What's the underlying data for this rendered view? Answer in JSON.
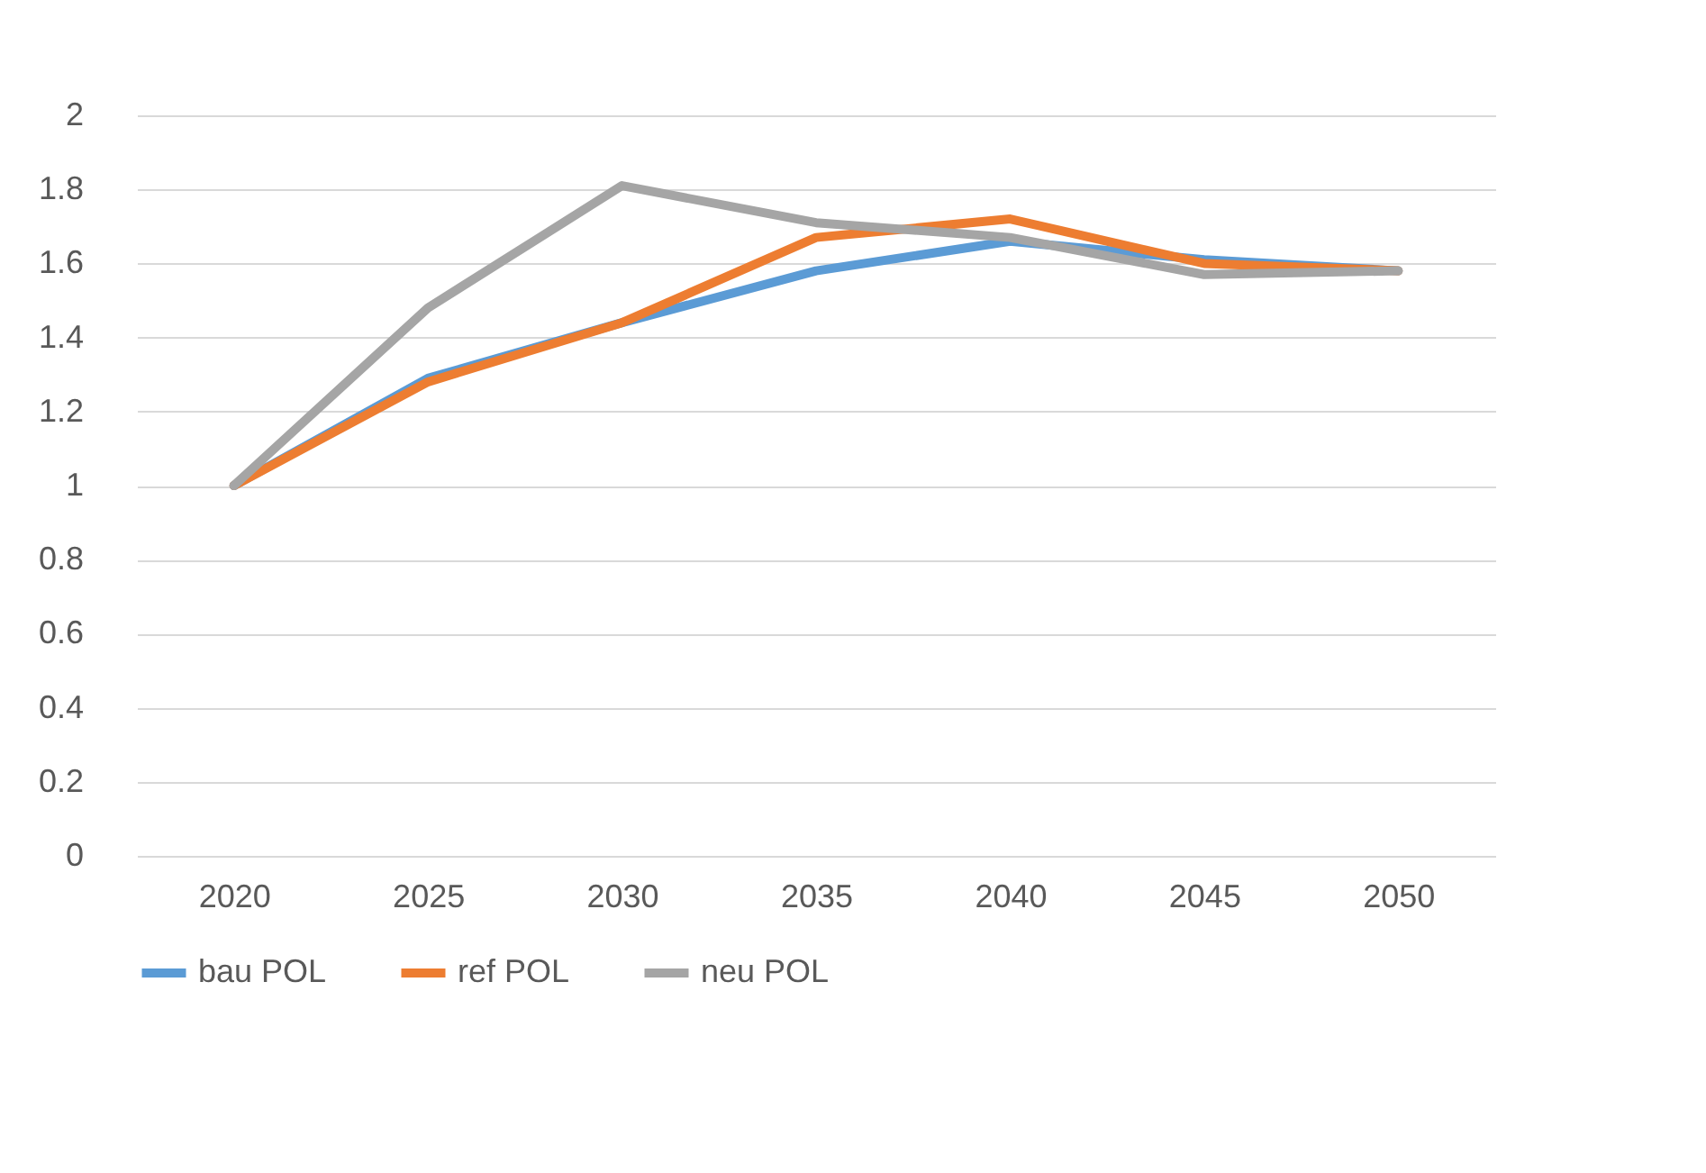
{
  "chart_data": {
    "type": "line",
    "categories": [
      "2020",
      "2025",
      "2030",
      "2035",
      "2040",
      "2045",
      "2050"
    ],
    "series": [
      {
        "name": "bau POL",
        "color": "#5b9bd5",
        "values": [
          1.0,
          1.29,
          1.44,
          1.58,
          1.66,
          1.61,
          1.58
        ]
      },
      {
        "name": "ref POL",
        "color": "#ed7d31",
        "values": [
          1.0,
          1.28,
          1.44,
          1.67,
          1.72,
          1.6,
          1.58
        ]
      },
      {
        "name": "neu POL",
        "color": "#a5a5a5",
        "values": [
          1.0,
          1.48,
          1.81,
          1.71,
          1.67,
          1.57,
          1.58
        ]
      }
    ],
    "ylim": [
      0,
      2
    ],
    "yticks": [
      0,
      0.2,
      0.4,
      0.6,
      0.8,
      1,
      1.2,
      1.4,
      1.6,
      1.8,
      2
    ],
    "grid": "y",
    "legend": "bottom"
  }
}
